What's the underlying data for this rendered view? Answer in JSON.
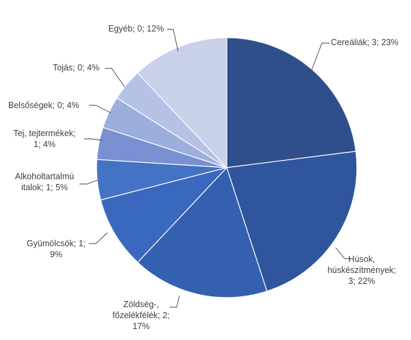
{
  "chart_data": {
    "type": "pie",
    "title": "",
    "start_angle_deg": 0,
    "direction": "clockwise",
    "legend": "none",
    "data_labels": "category; value; percent",
    "slices": [
      {
        "category": "Cereáliák",
        "value": 3,
        "percent": 23,
        "color": "#2E4F8C",
        "label_lines": [
          "Cereáliák; 3; 23%"
        ]
      },
      {
        "category": "Húsok, húskészítmények",
        "value": 3,
        "percent": 22,
        "color": "#2F559D",
        "label_lines": [
          "Húsok,",
          "húskészítmények;",
          "3; 22%"
        ]
      },
      {
        "category": "Zöldség-, főzelékfélék",
        "value": 2,
        "percent": 17,
        "color": "#3460B0",
        "label_lines": [
          "Zöldség-,",
          "főzelékfélék; 2;",
          "17%"
        ]
      },
      {
        "category": "Gyümölcsök",
        "value": 1,
        "percent": 9,
        "color": "#3A68BE",
        "label_lines": [
          "Gyümölcsök; 1;",
          "9%"
        ]
      },
      {
        "category": "Alkoholtartalmú italok",
        "value": 1,
        "percent": 5,
        "color": "#4472C4",
        "label_lines": [
          "Alkoholtartalmú",
          "italok; 1; 5%"
        ]
      },
      {
        "category": "Tej, tejtermékek",
        "value": 1,
        "percent": 4,
        "color": "#7990D2",
        "label_lines": [
          "Tej, tejtermékek;",
          "1; 4%"
        ]
      },
      {
        "category": "Belsőségek",
        "value": 0,
        "percent": 4,
        "color": "#9CAEDD",
        "label_lines": [
          "Belsőségek; 0; 4%"
        ]
      },
      {
        "category": "Tojás",
        "value": 0,
        "percent": 4,
        "color": "#B5C1E5",
        "label_lines": [
          "Tojás; 0; 4%"
        ]
      },
      {
        "category": "Egyéb",
        "value": 0,
        "percent": 12,
        "color": "#C9D0EA",
        "label_lines": [
          "Egyéb; 0; 12%"
        ]
      }
    ]
  }
}
